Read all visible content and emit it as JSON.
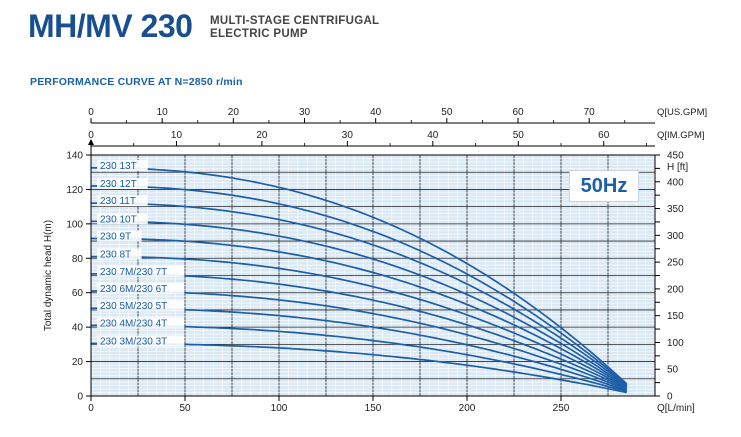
{
  "header": {
    "model": "MH/MV 230",
    "subtitle_line1": "MULTI-STAGE CENTRIFUGAL",
    "subtitle_line2": "ELECTRIC PUMP",
    "performance_title": "PERFORMANCE CURVE AT N=2850  r/min"
  },
  "badge": "50Hz",
  "colors": {
    "accent": "#1a5fa8",
    "curve": "#1f5fa8",
    "title": "#1a4f8f",
    "plot_bg": "#dbe9f5"
  },
  "chart_data": {
    "type": "line",
    "title": "",
    "xlabel": "Q[L/min]",
    "ylabel": "Total dynamic head H(m)",
    "y2label": "H [ft]",
    "top_axis_1_label": "Q[US.GPM]",
    "top_axis_2_label": "Q[IM.GPM]",
    "xlim": [
      0,
      300
    ],
    "ylim": [
      0,
      140
    ],
    "y2lim": [
      0,
      450
    ],
    "top1lim": [
      0,
      79.25
    ],
    "top2lim": [
      0,
      66
    ],
    "xticks": [
      0,
      50,
      100,
      150,
      200,
      250
    ],
    "yticks": [
      0,
      20,
      40,
      60,
      80,
      100,
      120,
      140
    ],
    "y2ticks": [
      0,
      25,
      50,
      75,
      100,
      125,
      150,
      175,
      200,
      225,
      250,
      275,
      300,
      325,
      350,
      375,
      400,
      425,
      450
    ],
    "y2ticklabels": [
      "0",
      "",
      "50",
      "",
      "100",
      "",
      "150",
      "",
      "200",
      "",
      "250",
      "",
      "300",
      "",
      "350",
      "",
      "400",
      "",
      "450"
    ],
    "top1ticks": [
      0,
      10,
      20,
      30,
      40,
      50,
      60,
      70
    ],
    "top2ticks": [
      0,
      10,
      20,
      30,
      40,
      50,
      60
    ],
    "grid": true,
    "x_end": 285,
    "series": [
      {
        "name": "230 13T",
        "shutoff": 132.5,
        "end": 7.0
      },
      {
        "name": "230 12T",
        "shutoff": 122.0,
        "end": 6.5
      },
      {
        "name": "230 11T",
        "shutoff": 112.0,
        "end": 6.0
      },
      {
        "name": "230 10T",
        "shutoff": 101.5,
        "end": 5.5
      },
      {
        "name": "230 9T",
        "shutoff": 91.5,
        "end": 5.0
      },
      {
        "name": "230 8T",
        "shutoff": 81.0,
        "end": 4.5
      },
      {
        "name": "230 7M/230 7T",
        "shutoff": 71.0,
        "end": 4.0
      },
      {
        "name": "230 6M/230 6T",
        "shutoff": 61.0,
        "end": 3.5
      },
      {
        "name": "230 5M/230 5T",
        "shutoff": 51.0,
        "end": 3.0
      },
      {
        "name": "230 4M/230 4T",
        "shutoff": 41.0,
        "end": 2.5
      },
      {
        "name": "230 3M/230 3T",
        "shutoff": 30.5,
        "end": 2.0
      }
    ]
  }
}
